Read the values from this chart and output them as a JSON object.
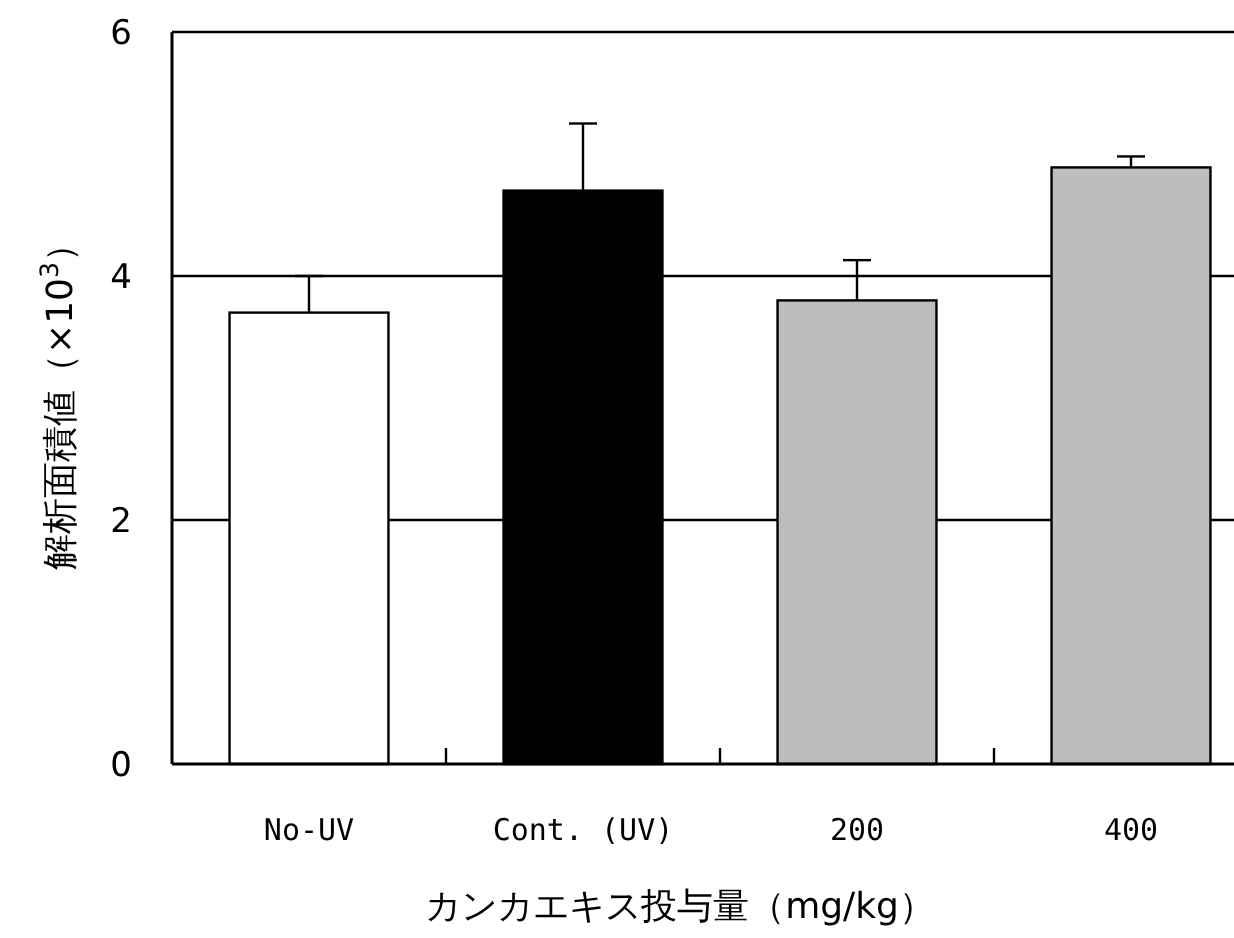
{
  "chart_data": {
    "type": "bar",
    "categories": [
      "No-UV",
      "Cont. (UV)",
      "200",
      "400"
    ],
    "values": [
      3.7,
      4.7,
      3.8,
      4.89
    ],
    "colors": [
      "#ffffff",
      "#000000",
      "#bdbdbd",
      "#bdbdbd"
    ],
    "errors": [
      [
        3.7,
        4.0
      ],
      [
        4.7,
        5.25
      ],
      [
        3.8,
        4.13
      ],
      [
        4.89,
        4.98
      ]
    ],
    "xlabel": "カンカエキス投与量（mg/kg）",
    "ylabel": "解析面積値（×10$^{3}$）",
    "ylim": [
      0,
      6
    ],
    "yticks": [
      0,
      2,
      4,
      6
    ],
    "grid": "y"
  }
}
